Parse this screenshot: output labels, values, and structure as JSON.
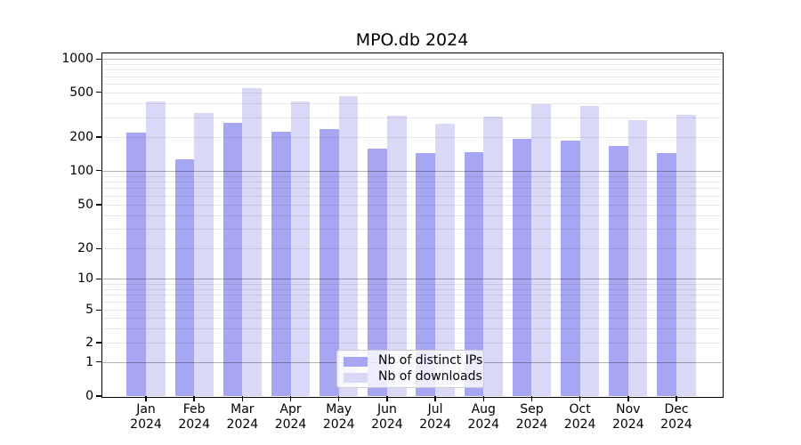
{
  "title": "MPO.db 2024",
  "chart_data": {
    "type": "bar",
    "title": "MPO.db 2024",
    "categories": [
      "Jan",
      "Feb",
      "Mar",
      "Apr",
      "May",
      "Jun",
      "Jul",
      "Aug",
      "Sep",
      "Oct",
      "Nov",
      "Dec"
    ],
    "x_label_year": "2024",
    "series": [
      {
        "name": "Nb of distinct IPs",
        "color": "#a6a6f2",
        "values": [
          218,
          126,
          266,
          224,
          234,
          157,
          144,
          146,
          193,
          187,
          166,
          143
        ]
      },
      {
        "name": "Nb of downloads",
        "color": "#d9d9f7",
        "values": [
          413,
          329,
          543,
          413,
          466,
          310,
          262,
          304,
          393,
          377,
          283,
          314
        ]
      }
    ],
    "xlabel": "",
    "ylabel": "",
    "ylim": [
      0,
      1000
    ],
    "yscale": "log-like with zero",
    "y_ticks": [
      0,
      1,
      2,
      5,
      10,
      20,
      50,
      100,
      200,
      500,
      1000
    ],
    "y_major_gridlines": [
      1,
      10,
      100,
      1000
    ],
    "grid": "horizontal major and minor, drawn over bars",
    "legend_position": "inside bottom-center",
    "legend": [
      "Nb of distinct IPs",
      "Nb of downloads"
    ]
  }
}
